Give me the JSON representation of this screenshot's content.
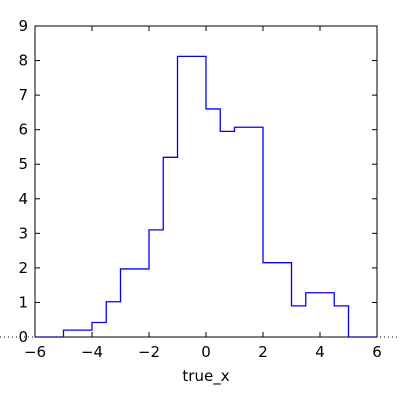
{
  "chart_data": {
    "type": "histogram",
    "xlabel": "true_x",
    "ylabel": "",
    "xlim": [
      -6,
      6
    ],
    "ylim": [
      0,
      9
    ],
    "xticks": [
      -6,
      -4,
      -2,
      0,
      2,
      4,
      6
    ],
    "yticks": [
      0,
      1,
      2,
      3,
      4,
      5,
      6,
      7,
      8,
      9
    ],
    "xtick_labels": [
      "−6",
      "−4",
      "−2",
      "0",
      "2",
      "4",
      "6"
    ],
    "ytick_labels": [
      "0",
      "1",
      "2",
      "3",
      "4",
      "5",
      "6",
      "7",
      "8",
      "9"
    ],
    "grid": false,
    "line_color": "#0000ff",
    "bin_edges": [
      -6,
      -5.5,
      -5,
      -4.5,
      -4,
      -3.5,
      -3,
      -2.5,
      -2,
      -1.5,
      -1,
      -0.5,
      0,
      0.5,
      1,
      1.5,
      2,
      2.5,
      3,
      3.5,
      4,
      4.5,
      5,
      5.5,
      6
    ],
    "values": [
      0,
      0,
      0.2,
      0.2,
      0.42,
      1.02,
      1.97,
      1.97,
      3.1,
      5.2,
      8.12,
      8.12,
      6.6,
      5.95,
      6.07,
      6.07,
      2.15,
      2.15,
      0.9,
      1.28,
      1.28,
      0.9,
      0,
      0
    ]
  }
}
